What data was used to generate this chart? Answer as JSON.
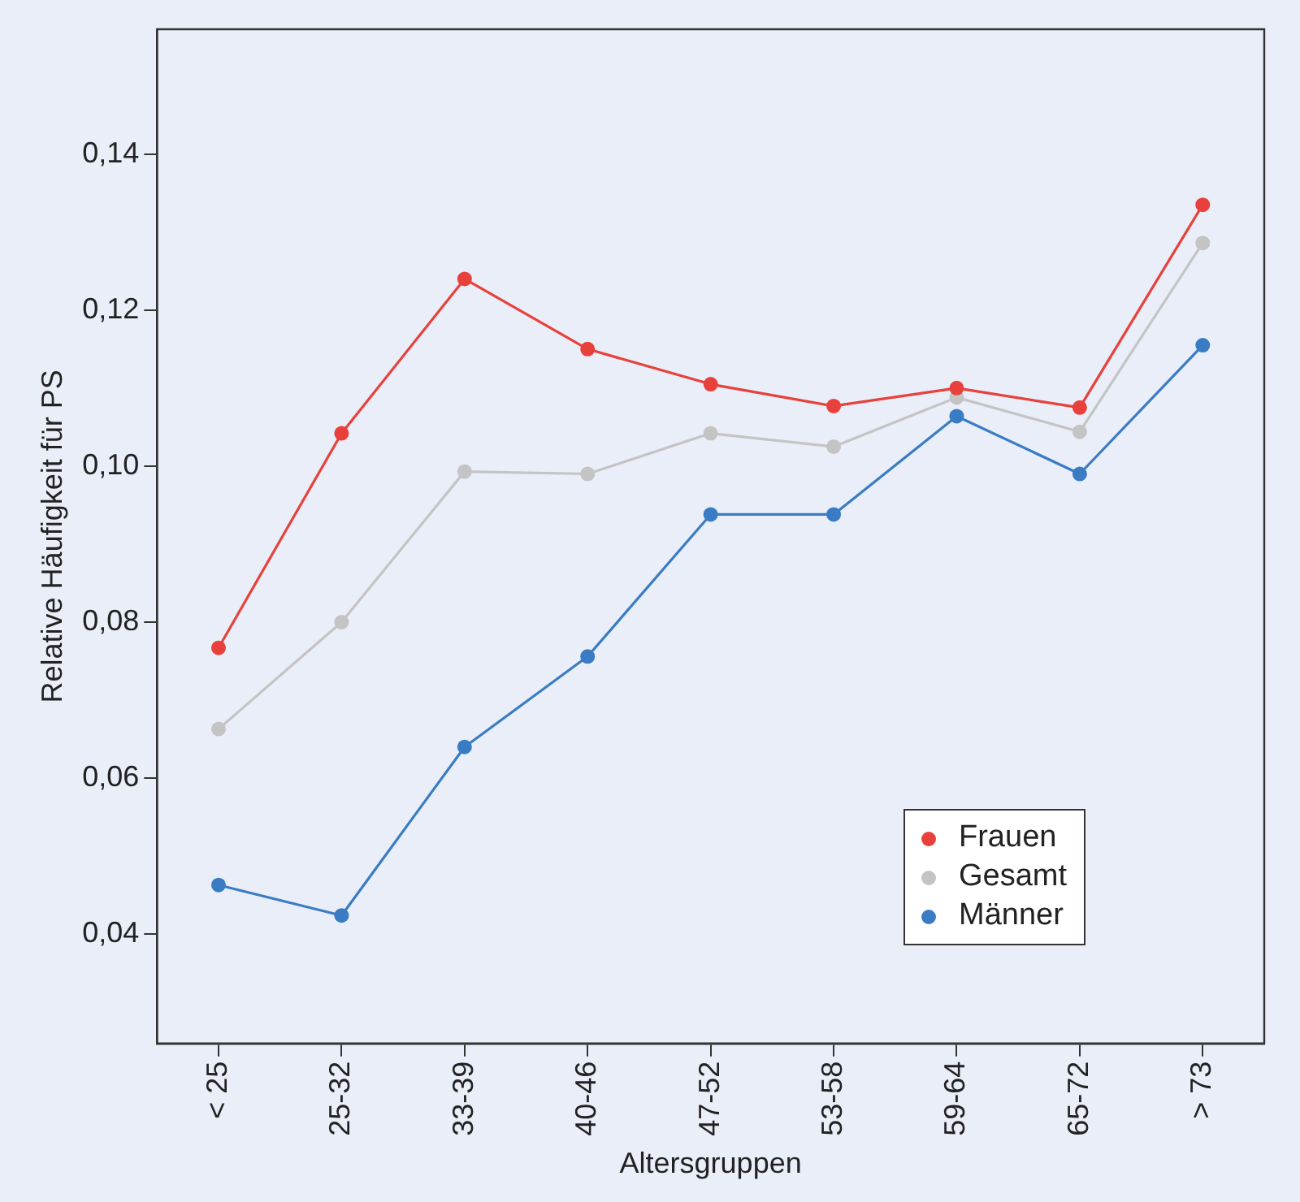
{
  "chart_data": {
    "type": "line",
    "xlabel": "Altersgruppen",
    "ylabel": "Relative Häufigkeit für PS",
    "categories": [
      "< 25",
      "25-32",
      "33-39",
      "40-46",
      "47-52",
      "53-58",
      "59-64",
      "65-72",
      "> 73"
    ],
    "series": [
      {
        "name": "Frauen",
        "color": "#e8413c",
        "values": [
          0.0767,
          0.1042,
          0.124,
          0.115,
          0.1105,
          0.1077,
          0.11,
          0.1075,
          0.1335
        ]
      },
      {
        "name": "Gesamt",
        "color": "#c4c4c4",
        "values": [
          0.0663,
          0.08,
          0.0993,
          0.099,
          0.1042,
          0.1025,
          0.1088,
          0.1044,
          0.1286
        ]
      },
      {
        "name": "Männer",
        "color": "#3a7cc4",
        "values": [
          0.0463,
          0.0424,
          0.064,
          0.0756,
          0.0938,
          0.0938,
          0.1064,
          0.099,
          0.1155
        ]
      }
    ],
    "ylim": [
      0.026,
      0.156
    ],
    "yticks": [
      {
        "value": 0.04,
        "label": "0,04"
      },
      {
        "value": 0.06,
        "label": "0,06"
      },
      {
        "value": 0.08,
        "label": "0,08"
      },
      {
        "value": 0.1,
        "label": "0,10"
      },
      {
        "value": 0.12,
        "label": "0,12"
      },
      {
        "value": 0.14,
        "label": "0,14"
      }
    ],
    "grid": false,
    "legend": "bottom right",
    "marker": "circle",
    "line_style": "solid"
  }
}
